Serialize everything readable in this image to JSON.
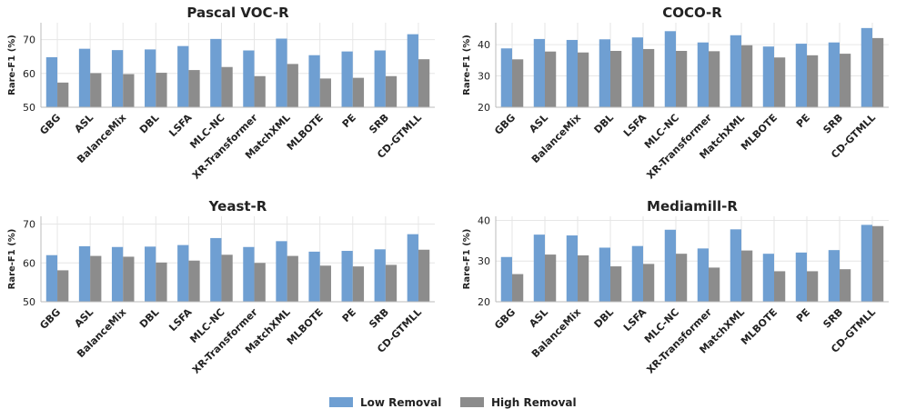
{
  "colors": {
    "low": "#6f9fd2",
    "high": "#8c8c8c",
    "grid": "#e6e6e6",
    "axis": "#bbbbbb"
  },
  "legend": {
    "low_label": "Low Removal",
    "high_label": "High Removal"
  },
  "chart_data": [
    {
      "type": "bar",
      "title": "Pascal VOC-R",
      "ylabel": "Rare-F1 (%)",
      "ylim": [
        50,
        75
      ],
      "yticks": [
        50,
        60,
        70
      ],
      "categories": [
        "GBG",
        "ASL",
        "BalanceMix",
        "DBL",
        "LSFA",
        "MLC-NC",
        "XR-Transformer",
        "MatchXML",
        "MLBOTE",
        "PE",
        "SRB",
        "CD-GTMLL"
      ],
      "series": [
        {
          "name": "Low Removal",
          "values": [
            64.8,
            67.3,
            66.9,
            67.1,
            68.1,
            70.2,
            66.8,
            70.3,
            65.4,
            66.5,
            66.8,
            71.6
          ]
        },
        {
          "name": "High Removal",
          "values": [
            57.3,
            60.1,
            59.8,
            60.2,
            61.0,
            61.9,
            59.2,
            62.8,
            58.5,
            58.7,
            59.2,
            64.2
          ]
        }
      ]
    },
    {
      "type": "bar",
      "title": "COCO-R",
      "ylabel": "Rare-F1 (%)",
      "ylim": [
        20,
        47
      ],
      "yticks": [
        20,
        30,
        40
      ],
      "categories": [
        "GBG",
        "ASL",
        "BalanceMix",
        "DBL",
        "LSFA",
        "MLC-NC",
        "XR-Transformer",
        "MatchXML",
        "MLBOTE",
        "PE",
        "SRB",
        "CD-GTMLL"
      ],
      "series": [
        {
          "name": "Low Removal",
          "values": [
            38.8,
            41.8,
            41.5,
            41.7,
            42.3,
            44.3,
            40.7,
            43.0,
            39.4,
            40.3,
            40.7,
            45.3
          ]
        },
        {
          "name": "High Removal",
          "values": [
            35.3,
            37.8,
            37.5,
            38.0,
            38.6,
            38.0,
            37.9,
            39.8,
            35.9,
            36.6,
            37.1,
            42.1
          ]
        }
      ]
    },
    {
      "type": "bar",
      "title": "Yeast-R",
      "ylabel": "Rare-F1 (%)",
      "ylim": [
        50,
        72
      ],
      "yticks": [
        50,
        60,
        70
      ],
      "categories": [
        "GBG",
        "ASL",
        "BalanceMix",
        "DBL",
        "LSFA",
        "MLC-NC",
        "XR-Transformer",
        "MatchXML",
        "MLBOTE",
        "PE",
        "SRB",
        "CD-GTMLL"
      ],
      "series": [
        {
          "name": "Low Removal",
          "values": [
            62.0,
            64.3,
            64.1,
            64.2,
            64.6,
            66.4,
            64.1,
            65.6,
            62.9,
            63.1,
            63.5,
            67.4
          ]
        },
        {
          "name": "High Removal",
          "values": [
            58.1,
            61.8,
            61.6,
            60.1,
            60.6,
            62.1,
            60.0,
            61.8,
            59.3,
            59.1,
            59.5,
            63.4
          ]
        }
      ]
    },
    {
      "type": "bar",
      "title": "Mediamill-R",
      "ylabel": "Rare-F1 (%)",
      "ylim": [
        20,
        41
      ],
      "yticks": [
        20,
        30,
        40
      ],
      "categories": [
        "GBG",
        "ASL",
        "BalanceMix",
        "DBL",
        "LSFA",
        "MLC-NC",
        "XR-Transformer",
        "MatchXML",
        "MLBOTE",
        "PE",
        "SRB",
        "CD-GTMLL"
      ],
      "series": [
        {
          "name": "Low Removal",
          "values": [
            31.0,
            36.5,
            36.3,
            33.3,
            33.7,
            37.7,
            33.1,
            37.8,
            31.8,
            32.1,
            32.7,
            38.9
          ]
        },
        {
          "name": "High Removal",
          "values": [
            26.8,
            31.6,
            31.4,
            28.7,
            29.3,
            31.8,
            28.4,
            32.6,
            27.5,
            27.5,
            28.0,
            38.6
          ]
        }
      ]
    }
  ]
}
